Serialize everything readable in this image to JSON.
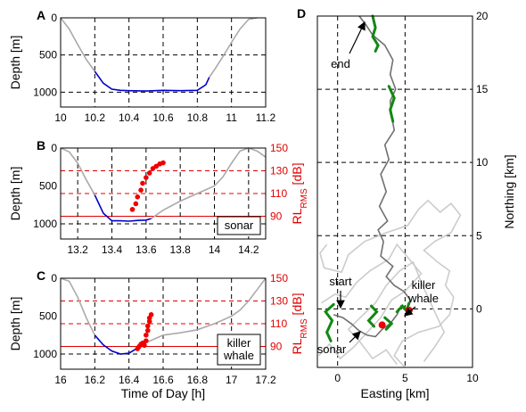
{
  "chart_data": [
    {
      "panel": "A",
      "type": "line",
      "ylabel": "Depth [m]",
      "xlim": [
        10,
        11.2
      ],
      "ylim": [
        0,
        1200
      ],
      "x_ticks": [
        "10",
        "10.2",
        "10.4",
        "10.6",
        "10.8",
        "11",
        "11.2"
      ],
      "y_ticks": [
        "0",
        "500",
        "1000"
      ],
      "series": [
        {
          "color": "#aaaaaa",
          "x": [
            10.0,
            10.05,
            10.1,
            10.15,
            10.2
          ],
          "y": [
            0,
            150,
            360,
            560,
            720
          ]
        },
        {
          "color": "#0000cc",
          "x": [
            10.2,
            10.25,
            10.3,
            10.35,
            10.4,
            10.5,
            10.6,
            10.7,
            10.8,
            10.85,
            10.87
          ],
          "y": [
            720,
            880,
            960,
            975,
            980,
            985,
            975,
            980,
            975,
            900,
            800
          ]
        },
        {
          "color": "#aaaaaa",
          "x": [
            10.87,
            10.9,
            10.95,
            11.0,
            11.05,
            11.1,
            11.15
          ],
          "y": [
            800,
            700,
            520,
            330,
            150,
            20,
            0
          ]
        }
      ]
    },
    {
      "panel": "B",
      "type": "line",
      "ylabel": "Depth [m]",
      "y2label": "RL_RMS [dB]",
      "xlim": [
        13.1,
        14.3
      ],
      "ylim": [
        0,
        1200
      ],
      "y2lim": [
        70,
        150
      ],
      "x_ticks": [
        "13.2",
        "13.4",
        "13.6",
        "13.8",
        "14",
        "14.2"
      ],
      "y_ticks": [
        "0",
        "500",
        "1000"
      ],
      "y2_ticks": [
        "150",
        "130",
        "110",
        "90"
      ],
      "thresholds_db": [
        90,
        110,
        130
      ],
      "legend": "sonar",
      "series": [
        {
          "color": "#aaaaaa",
          "x": [
            13.1,
            13.15,
            13.2,
            13.25,
            13.3
          ],
          "y": [
            0,
            50,
            200,
            420,
            620
          ]
        },
        {
          "color": "#0000cc",
          "x": [
            13.3,
            13.35,
            13.4,
            13.45,
            13.5,
            13.55,
            13.6,
            13.63
          ],
          "y": [
            620,
            860,
            960,
            960,
            965,
            955,
            950,
            930
          ]
        },
        {
          "color": "#aaaaaa",
          "x": [
            13.63,
            13.7,
            13.8,
            13.9,
            14.0,
            14.05,
            14.1,
            14.15,
            14.2,
            14.25,
            14.3
          ],
          "y": [
            930,
            820,
            700,
            600,
            500,
            380,
            200,
            40,
            0,
            40,
            120
          ]
        }
      ],
      "rl_points": {
        "color": "#ee0000",
        "x": [
          13.52,
          13.54,
          13.55,
          13.57,
          13.58,
          13.6,
          13.62,
          13.64,
          13.66,
          13.68,
          13.7
        ],
        "db": [
          96,
          101,
          107,
          113,
          119,
          124,
          128,
          132,
          134,
          136,
          137
        ]
      }
    },
    {
      "panel": "C",
      "type": "line",
      "ylabel": "Depth [m]",
      "y2label": "RL_RMS [dB]",
      "xlabel": "Time of Day [h]",
      "xlim": [
        16,
        17.2
      ],
      "ylim": [
        0,
        1200
      ],
      "y2lim": [
        70,
        150
      ],
      "x_ticks": [
        "16",
        "16.2",
        "16.4",
        "16.6",
        "16.8",
        "17",
        "17.2"
      ],
      "y_ticks": [
        "0",
        "500",
        "1000"
      ],
      "y2_ticks": [
        "150",
        "130",
        "110",
        "90"
      ],
      "thresholds_db": [
        90,
        110,
        130
      ],
      "legend": [
        "killer",
        "whale"
      ],
      "series": [
        {
          "color": "#aaaaaa",
          "x": [
            16.0,
            16.05,
            16.1,
            16.15,
            16.2
          ],
          "y": [
            0,
            40,
            250,
            520,
            750
          ]
        },
        {
          "color": "#0000cc",
          "x": [
            16.2,
            16.25,
            16.3,
            16.35,
            16.4,
            16.45,
            16.47
          ],
          "y": [
            750,
            880,
            960,
            1000,
            990,
            920,
            880
          ]
        },
        {
          "color": "#aaaaaa",
          "x": [
            16.47,
            16.55,
            16.6,
            16.7,
            16.8,
            16.9,
            17.0,
            17.05,
            17.1,
            17.15,
            17.2
          ],
          "y": [
            880,
            800,
            750,
            720,
            680,
            600,
            500,
            420,
            300,
            150,
            0
          ]
        }
      ],
      "rl_points": {
        "color": "#ee0000",
        "x": [
          16.45,
          16.46,
          16.47,
          16.48,
          16.49,
          16.5,
          16.5,
          16.51,
          16.51,
          16.52,
          16.52,
          16.53
        ],
        "db": [
          88,
          90,
          92,
          93,
          91,
          95,
          100,
          104,
          108,
          112,
          115,
          118
        ]
      }
    },
    {
      "panel": "D",
      "type": "line",
      "xlabel": "Easting [km]",
      "ylabel": "Northing [km]",
      "xlim": [
        -1.5,
        10
      ],
      "ylim": [
        -4,
        20
      ],
      "x_ticks": [
        "0",
        "5",
        "10"
      ],
      "y_ticks": [
        "20",
        "15",
        "10",
        "5",
        "0"
      ],
      "annotations": [
        "end",
        "start",
        "killer",
        "whale",
        "sonar"
      ]
    }
  ]
}
